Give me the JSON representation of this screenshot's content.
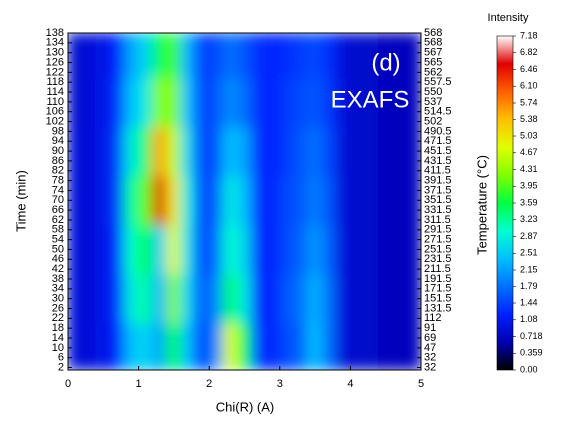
{
  "chart_data": {
    "type": "heatmap",
    "x_label": "Chi(R) (A)",
    "y_label": "Time (min)",
    "y2_label": "Temperature (°C)",
    "colorbar_title": "Intensity",
    "annotations": [
      "(d)",
      "EXAFS"
    ],
    "xlim": [
      0,
      5
    ],
    "xticks": [
      0,
      1,
      2,
      3,
      4,
      5
    ],
    "ylim": [
      1,
      138
    ],
    "yticks": [
      2,
      6,
      10,
      14,
      18,
      22,
      26,
      30,
      34,
      38,
      42,
      46,
      50,
      54,
      58,
      62,
      66,
      70,
      74,
      78,
      82,
      86,
      90,
      94,
      98,
      102,
      106,
      110,
      114,
      118,
      122,
      126,
      130,
      134,
      138
    ],
    "temperature_labels": [
      32,
      32,
      47,
      69,
      91,
      112,
      131.5,
      151.5,
      171.5,
      191.5,
      211.5,
      231.5,
      251.5,
      271.5,
      291.5,
      311.5,
      331.5,
      351.5,
      371.5,
      391.5,
      411.5,
      431.5,
      451.5,
      471.5,
      490.5,
      502,
      514.5,
      537,
      550,
      557.5,
      562,
      565,
      567,
      568,
      568
    ],
    "x_bins": [
      0,
      0.2,
      0.4,
      0.6,
      0.8,
      1,
      1.2,
      1.4,
      1.6,
      1.8,
      2,
      2.2,
      2.4,
      2.6,
      2.8,
      3,
      3.2,
      3.4,
      3.6,
      3.8,
      4,
      4.2,
      4.4,
      4.6,
      4.8,
      5
    ],
    "y_bins": [
      1,
      20,
      40,
      60,
      80,
      100,
      120,
      138
    ],
    "values": [
      [
        0.9,
        0.9,
        1.0,
        1.2,
        2.4,
        2.6,
        2.2,
        3.6,
        2.4,
        1.3,
        2.0,
        4.8,
        3.5,
        1.4,
        1.2,
        1.5,
        1.7,
        2.4,
        1.8,
        0.9,
        0.8,
        0.8,
        0.7,
        0.7,
        0.7
      ],
      [
        0.9,
        0.9,
        1.0,
        1.3,
        2.8,
        3.2,
        2.3,
        4.2,
        2.6,
        1.5,
        2.0,
        3.4,
        2.8,
        1.3,
        1.2,
        1.6,
        1.8,
        2.3,
        1.8,
        0.9,
        0.8,
        0.8,
        0.7,
        0.7,
        0.7
      ],
      [
        0.9,
        0.9,
        1.0,
        1.3,
        3.0,
        3.6,
        2.5,
        4.8,
        2.7,
        1.4,
        1.8,
        3.0,
        2.6,
        1.3,
        1.2,
        1.5,
        1.7,
        2.1,
        1.7,
        0.9,
        0.8,
        0.8,
        0.7,
        0.7,
        0.7
      ],
      [
        0.9,
        0.9,
        1.0,
        1.4,
        3.2,
        4.0,
        6.6,
        5.0,
        2.8,
        1.4,
        1.7,
        2.8,
        2.4,
        1.3,
        1.2,
        1.5,
        1.6,
        1.9,
        1.6,
        0.9,
        0.8,
        0.8,
        0.7,
        0.7,
        0.7
      ],
      [
        0.9,
        0.9,
        1.0,
        1.4,
        2.8,
        3.4,
        5.6,
        4.6,
        2.6,
        1.4,
        1.6,
        2.4,
        2.2,
        1.3,
        1.2,
        1.4,
        1.6,
        1.8,
        1.5,
        0.9,
        0.8,
        0.8,
        0.7,
        0.7,
        0.7
      ],
      [
        0.8,
        0.9,
        1.0,
        1.3,
        2.4,
        2.8,
        4.2,
        4.2,
        2.4,
        1.4,
        1.6,
        2.0,
        1.8,
        1.3,
        1.2,
        1.4,
        1.5,
        1.6,
        1.4,
        0.9,
        0.8,
        0.8,
        0.7,
        0.7,
        0.7
      ],
      [
        0.8,
        0.9,
        1.0,
        1.2,
        2.2,
        2.6,
        3.5,
        3.9,
        2.3,
        1.4,
        1.5,
        1.8,
        1.6,
        1.3,
        1.2,
        1.3,
        1.4,
        1.5,
        1.3,
        0.9,
        0.8,
        0.8,
        0.7,
        0.7,
        0.7
      ]
    ],
    "colorlim": [
      0,
      7.18
    ],
    "colorbar_ticks": [
      {
        "value": 0,
        "label": "0.00"
      },
      0.359,
      0.718,
      1.08,
      1.44,
      1.79,
      2.15,
      2.51,
      2.87,
      3.23,
      3.59,
      3.95,
      4.31,
      4.67,
      5.03,
      5.38,
      5.74,
      {
        "value": 6.1,
        "label": "6.10"
      },
      6.46,
      6.82,
      7.18
    ],
    "colorscale": [
      "#000000",
      "#0000b0",
      "#0020ff",
      "#0070ff",
      "#00c0ff",
      "#00ffd0",
      "#00ff40",
      "#80ff00",
      "#e0ff00",
      "#ffc000",
      "#ff6000",
      "#e00000",
      "#ffffff"
    ]
  }
}
